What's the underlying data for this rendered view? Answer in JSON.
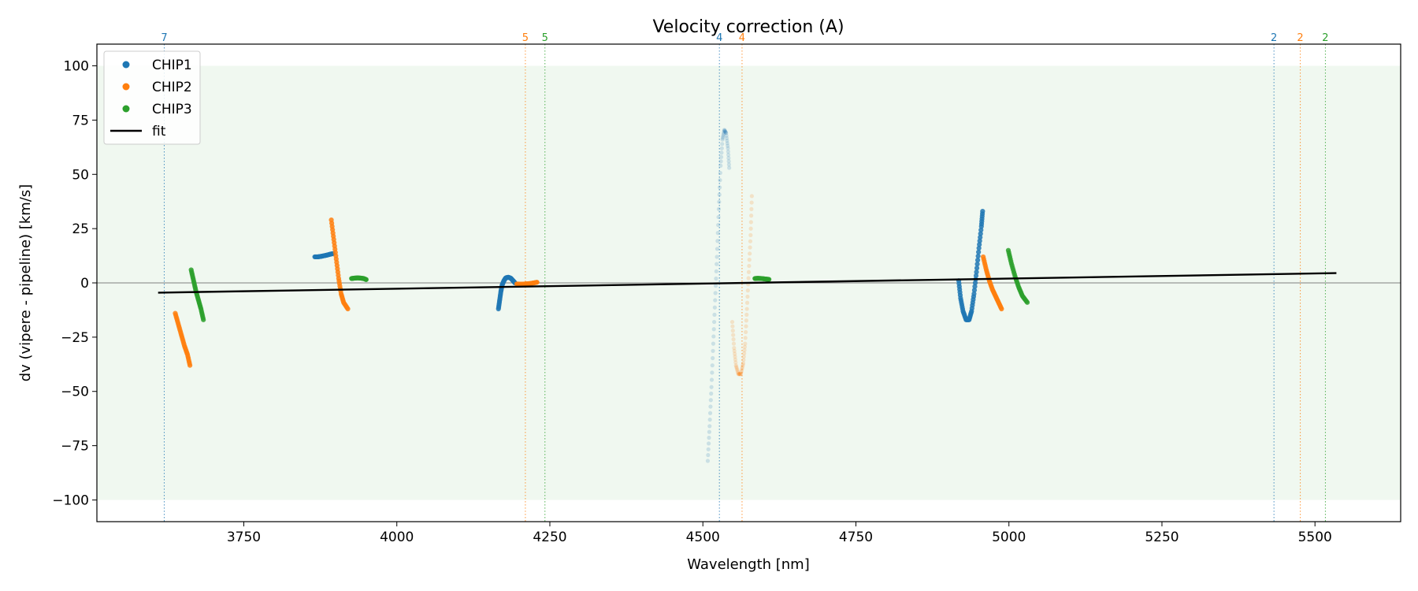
{
  "chart_data": {
    "type": "scatter",
    "title": "Velocity correction (A)",
    "xlabel": "Wavelength [nm]",
    "ylabel": "dv (vipere - pipeline) [km/s]",
    "xlim": [
      3510,
      5640
    ],
    "ylim": [
      -110,
      110
    ],
    "xticks": [
      3750,
      4000,
      4250,
      4500,
      4750,
      5000,
      5250,
      5500
    ],
    "xtick_labels": [
      "3750",
      "4000",
      "4250",
      "4500",
      "4750",
      "5000",
      "5250",
      "5500"
    ],
    "yticks": [
      100,
      75,
      50,
      25,
      0,
      -25,
      -50,
      -75,
      -100
    ],
    "ytick_labels": [
      "100",
      "75",
      "50",
      "25",
      "0",
      "−25",
      "−50",
      "−75",
      "−100"
    ],
    "shaded_band": [
      -100,
      100
    ],
    "zero_line": 0,
    "legend": {
      "position": "top-left",
      "entries": [
        {
          "label": "CHIP1",
          "kind": "marker",
          "color": "#1f77b4"
        },
        {
          "label": "CHIP2",
          "kind": "marker",
          "color": "#ff7f0e"
        },
        {
          "label": "CHIP3",
          "kind": "marker",
          "color": "#2ca02c"
        },
        {
          "label": "fit",
          "kind": "line",
          "color": "#000000"
        }
      ]
    },
    "fit": {
      "x": [
        3610,
        5535
      ],
      "y": [
        -4.5,
        4.5
      ],
      "color": "#000000"
    },
    "markers": [
      {
        "x": 3620,
        "label": "7",
        "color": "#1f77b4"
      },
      {
        "x": 4210,
        "label": "5",
        "color": "#ff7f0e"
      },
      {
        "x": 4242,
        "label": "5",
        "color": "#2ca02c"
      },
      {
        "x": 4527,
        "label": "4",
        "color": "#1f77b4"
      },
      {
        "x": 4564,
        "label": "4",
        "color": "#ff7f0e"
      },
      {
        "x": 5433,
        "label": "2",
        "color": "#1f77b4"
      },
      {
        "x": 5476,
        "label": "2",
        "color": "#ff7f0e"
      },
      {
        "x": 5517,
        "label": "2",
        "color": "#2ca02c"
      }
    ],
    "series": [
      {
        "name": "CHIP1",
        "color": "#1f77b4",
        "segments": [
          {
            "faded": false,
            "points": [
              [
                3866,
                12
              ],
              [
                3871,
                12
              ],
              [
                3876,
                12.2
              ],
              [
                3881,
                12.5
              ],
              [
                3886,
                12.8
              ],
              [
                3891,
                13.2
              ],
              [
                3896,
                13.5
              ]
            ]
          },
          {
            "faded": false,
            "points": [
              [
                4166,
                -12
              ],
              [
                4168,
                -8
              ],
              [
                4170,
                -4
              ],
              [
                4172,
                -1
              ],
              [
                4175,
                1
              ],
              [
                4178,
                2.3
              ],
              [
                4182,
                2.6
              ],
              [
                4186,
                2.2
              ],
              [
                4190,
                1
              ],
              [
                4193,
                0
              ]
            ]
          },
          {
            "faded": true,
            "points": [
              [
                4508,
                -82
              ],
              [
                4511,
                -66
              ],
              [
                4514,
                -48
              ],
              [
                4517,
                -28
              ],
              [
                4520,
                -8
              ],
              [
                4523,
                12
              ],
              [
                4526,
                34
              ],
              [
                4529,
                54
              ],
              [
                4532,
                66
              ],
              [
                4535,
                70.5
              ],
              [
                4538,
                69
              ],
              [
                4541,
                62
              ],
              [
                4543,
                53
              ]
            ]
          },
          {
            "faded": false,
            "points": [
              [
                4918,
                1
              ],
              [
                4921,
                -7
              ],
              [
                4925,
                -13
              ],
              [
                4930,
                -17
              ],
              [
                4935,
                -17
              ],
              [
                4939,
                -13
              ],
              [
                4943,
                -5
              ],
              [
                4947,
                5
              ],
              [
                4951,
                16
              ],
              [
                4955,
                26
              ],
              [
                4957,
                33
              ]
            ]
          }
        ]
      },
      {
        "name": "CHIP2",
        "color": "#ff7f0e",
        "segments": [
          {
            "faded": false,
            "points": [
              [
                3638,
                -14
              ],
              [
                3643,
                -19
              ],
              [
                3648,
                -24
              ],
              [
                3653,
                -29
              ],
              [
                3658,
                -33
              ],
              [
                3662,
                -38
              ]
            ]
          },
          {
            "faded": false,
            "points": [
              [
                3893,
                29
              ],
              [
                3897,
                20
              ],
              [
                3901,
                11
              ],
              [
                3905,
                2
              ],
              [
                3909,
                -5
              ],
              [
                3913,
                -9
              ],
              [
                3920,
                -12
              ]
            ]
          },
          {
            "faded": false,
            "points": [
              [
                4196,
                -0.5
              ],
              [
                4203,
                -0.6
              ],
              [
                4210,
                -0.5
              ],
              [
                4217,
                -0.3
              ],
              [
                4224,
                0
              ],
              [
                4229,
                0.3
              ]
            ]
          },
          {
            "faded": true,
            "points": [
              [
                4548,
                -18
              ],
              [
                4551,
                -30
              ],
              [
                4554,
                -38
              ],
              [
                4558,
                -42
              ],
              [
                4562,
                -42
              ],
              [
                4566,
                -37
              ],
              [
                4569,
                -28
              ],
              [
                4572,
                -12
              ],
              [
                4575,
                5
              ],
              [
                4578,
                22
              ],
              [
                4580,
                40
              ]
            ]
          },
          {
            "faded": false,
            "points": [
              [
                4958,
                12
              ],
              [
                4963,
                6
              ],
              [
                4968,
                1
              ],
              [
                4973,
                -3
              ],
              [
                4978,
                -6
              ],
              [
                4983,
                -9
              ],
              [
                4988,
                -12
              ]
            ]
          }
        ]
      },
      {
        "name": "CHIP3",
        "color": "#2ca02c",
        "segments": [
          {
            "faded": false,
            "points": [
              [
                3664,
                6
              ],
              [
                3668,
                1
              ],
              [
                3672,
                -4
              ],
              [
                3676,
                -8
              ],
              [
                3680,
                -12
              ],
              [
                3684,
                -17
              ]
            ]
          },
          {
            "faded": false,
            "points": [
              [
                3926,
                2
              ],
              [
                3931,
                2.2
              ],
              [
                3936,
                2.3
              ],
              [
                3941,
                2.2
              ],
              [
                3946,
                2
              ],
              [
                3950,
                1.5
              ]
            ]
          },
          {
            "faded": false,
            "points": [
              [
                4585,
                2
              ],
              [
                4590,
                2.1
              ],
              [
                4596,
                2
              ],
              [
                4602,
                1.8
              ],
              [
                4608,
                1.6
              ]
            ]
          },
          {
            "faded": false,
            "points": [
              [
                4999,
                15
              ],
              [
                5004,
                9
              ],
              [
                5010,
                3
              ],
              [
                5016,
                -2
              ],
              [
                5022,
                -6
              ],
              [
                5030,
                -9
              ]
            ]
          }
        ]
      }
    ]
  }
}
